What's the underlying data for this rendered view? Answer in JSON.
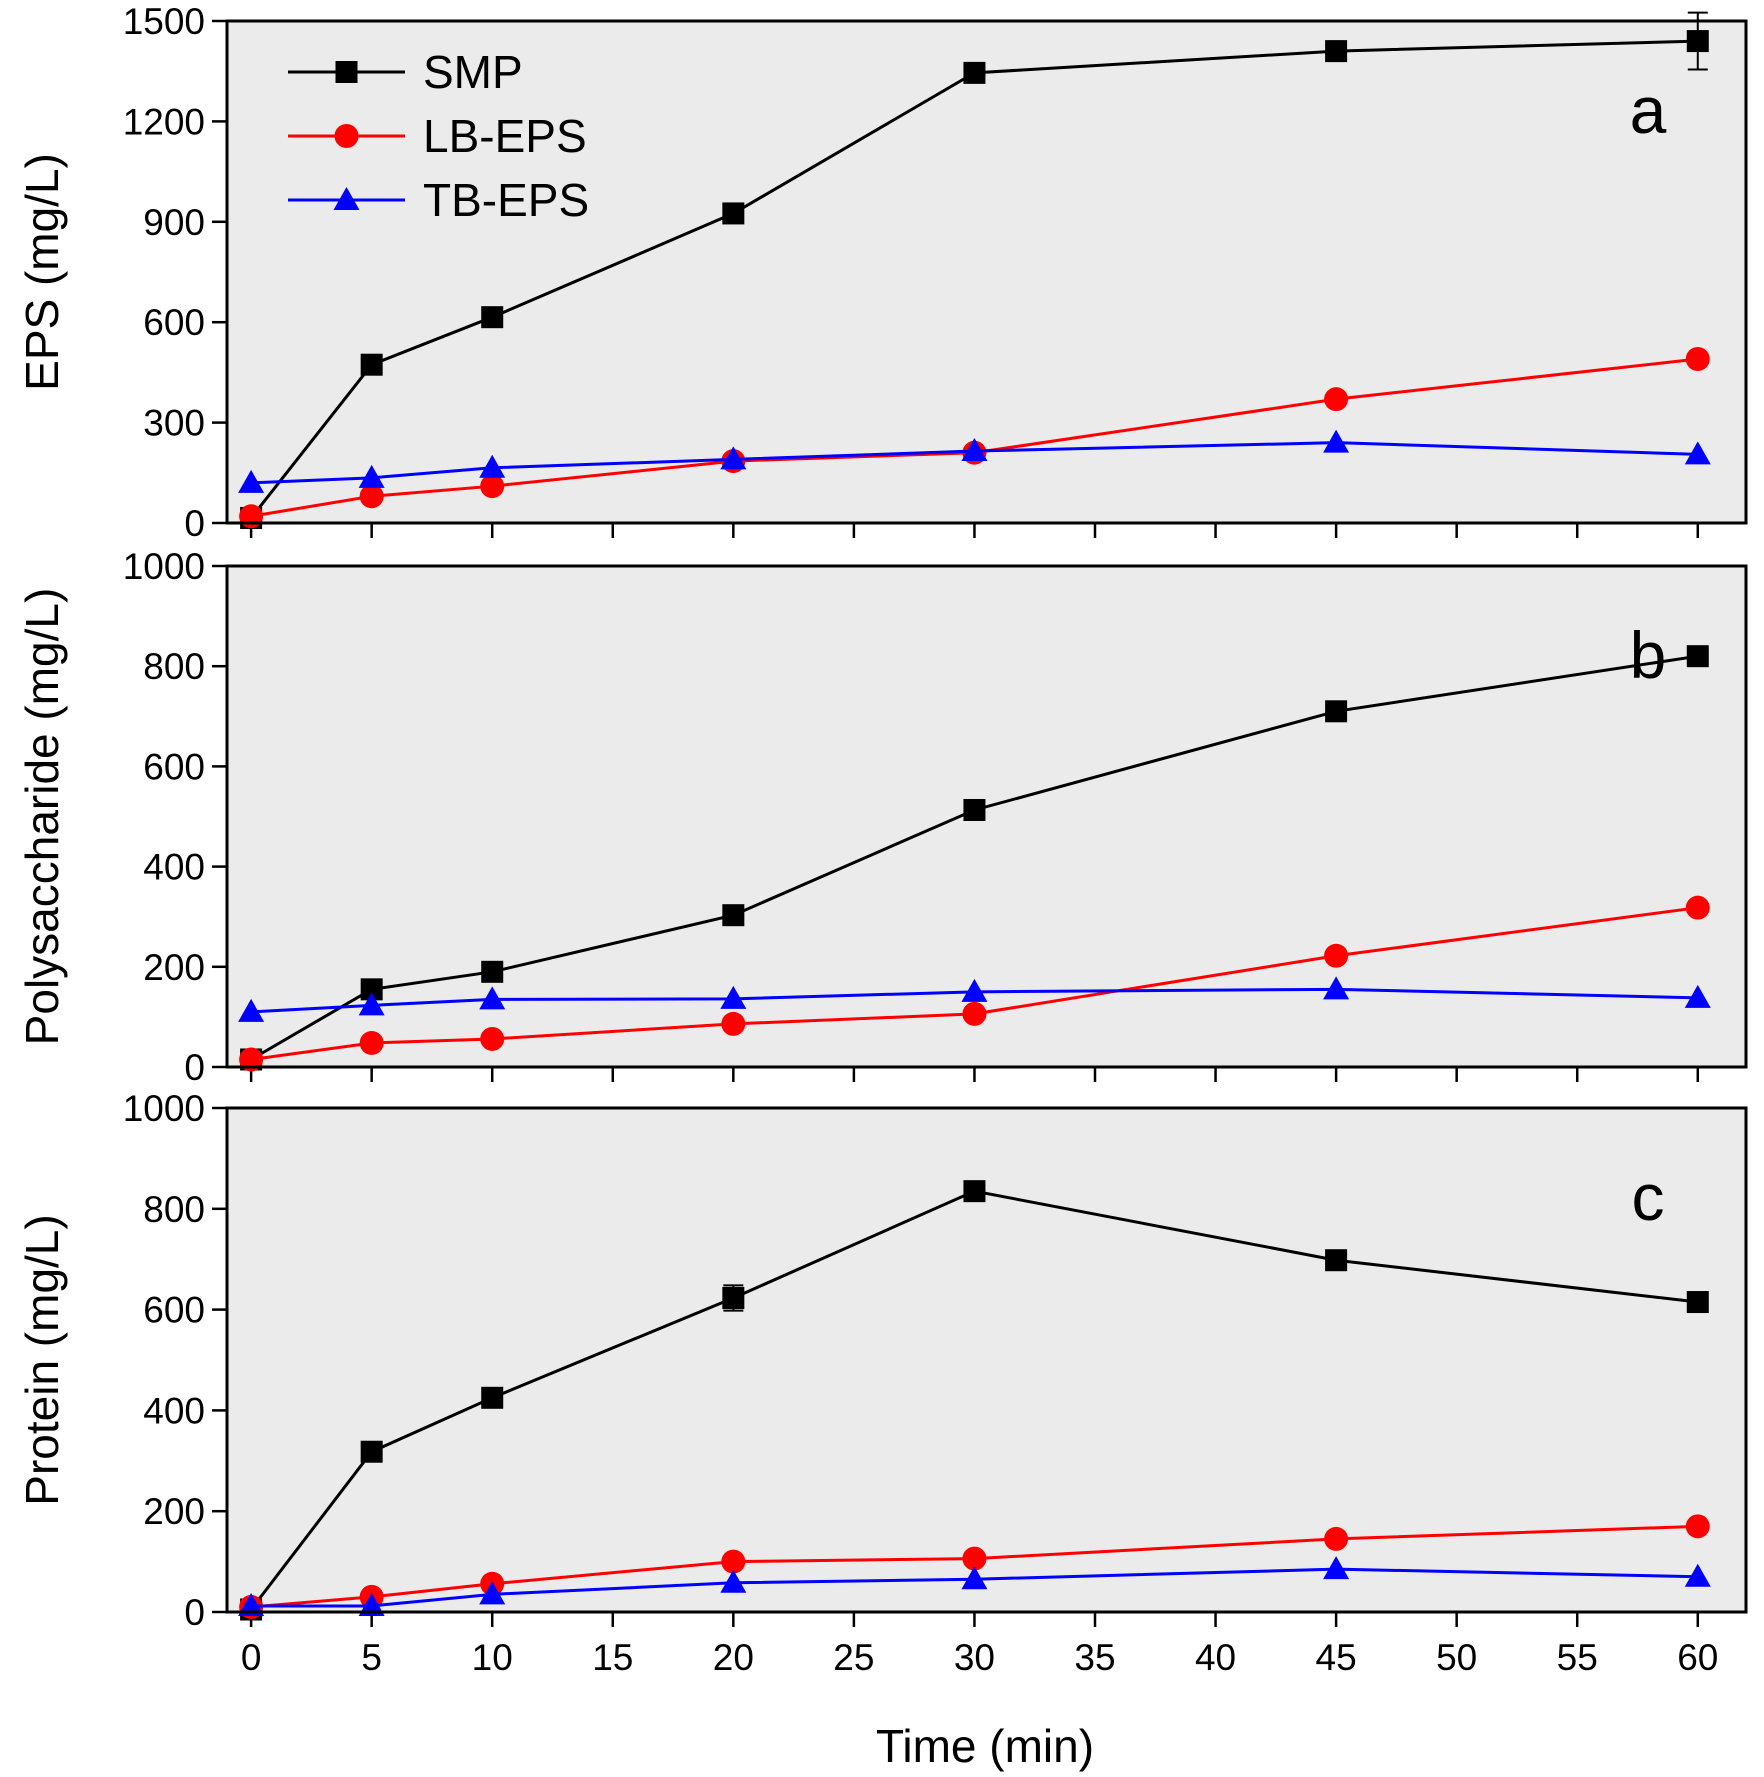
{
  "chart_data": {
    "type": "line",
    "x": [
      0,
      5,
      10,
      20,
      30,
      45,
      60
    ],
    "xlabel": "Time (min)",
    "xlim": [
      -1,
      62
    ],
    "xticks": [
      0,
      5,
      10,
      15,
      20,
      25,
      30,
      35,
      40,
      45,
      50,
      55,
      60
    ],
    "xtick_labels": [
      "0",
      "5",
      "10",
      "15",
      "20",
      "25",
      "30",
      "35",
      "40",
      "45",
      "50",
      "55",
      "60"
    ],
    "legend": {
      "location": "top-left",
      "entries": [
        {
          "name": "SMP",
          "color": "#000000",
          "marker": "square"
        },
        {
          "name": "LB-EPS",
          "color": "#ff0000",
          "marker": "circle"
        },
        {
          "name": "TB-EPS",
          "color": "#0000ff",
          "marker": "triangle"
        }
      ]
    },
    "panels": [
      {
        "id": "a",
        "letter": "a",
        "ylabel": "EPS (mg/L)",
        "ylim": [
          0,
          1500
        ],
        "yticks": [
          0,
          300,
          600,
          900,
          1200,
          1500
        ],
        "ytick_labels": [
          "0",
          "300",
          "600",
          "900",
          "1200",
          "1500"
        ],
        "series": [
          {
            "name": "SMP",
            "color": "#000000",
            "marker": "square",
            "values": [
              15,
              473,
              615,
              925,
              1345,
              1410,
              1440
            ],
            "errors": [
              0,
              0,
              0,
              0,
              0,
              0,
              85
            ]
          },
          {
            "name": "LB-EPS",
            "color": "#ff0000",
            "marker": "circle",
            "values": [
              20,
              80,
              110,
              185,
              210,
              370,
              490
            ],
            "errors": [
              0,
              0,
              0,
              0,
              0,
              0,
              0
            ]
          },
          {
            "name": "TB-EPS",
            "color": "#0000ff",
            "marker": "triangle",
            "values": [
              120,
              135,
              165,
              190,
              215,
              240,
              205
            ],
            "errors": [
              0,
              0,
              0,
              0,
              0,
              0,
              0
            ]
          }
        ]
      },
      {
        "id": "b",
        "letter": "b",
        "ylabel": "Polysaccharide (mg/L)",
        "ylim": [
          0,
          1000
        ],
        "yticks": [
          0,
          200,
          400,
          600,
          800,
          1000
        ],
        "ytick_labels": [
          "0",
          "200",
          "400",
          "600",
          "800",
          "1000"
        ],
        "series": [
          {
            "name": "SMP",
            "color": "#000000",
            "marker": "square",
            "values": [
              15,
              155,
              190,
              303,
              513,
              710,
              820
            ],
            "errors": [
              0,
              0,
              0,
              0,
              0,
              0,
              0
            ]
          },
          {
            "name": "LB-EPS",
            "color": "#ff0000",
            "marker": "circle",
            "values": [
              15,
              48,
              56,
              86,
              106,
              222,
              318
            ],
            "errors": [
              0,
              0,
              0,
              0,
              0,
              0,
              0
            ]
          },
          {
            "name": "TB-EPS",
            "color": "#0000ff",
            "marker": "triangle",
            "values": [
              110,
              123,
              135,
              136,
              150,
              155,
              138
            ],
            "errors": [
              0,
              0,
              0,
              0,
              0,
              0,
              0
            ]
          }
        ]
      },
      {
        "id": "c",
        "letter": "c",
        "ylabel": "Protein (mg/L)",
        "ylim": [
          0,
          1000
        ],
        "yticks": [
          0,
          200,
          400,
          600,
          800,
          1000
        ],
        "ytick_labels": [
          "0",
          "200",
          "400",
          "600",
          "800",
          "1000"
        ],
        "series": [
          {
            "name": "SMP",
            "color": "#000000",
            "marker": "square",
            "values": [
              5,
              318,
              425,
              623,
              835,
              698,
              615
            ],
            "errors": [
              0,
              0,
              0,
              25,
              0,
              0,
              0
            ]
          },
          {
            "name": "LB-EPS",
            "color": "#ff0000",
            "marker": "circle",
            "values": [
              10,
              30,
              56,
              100,
              106,
              145,
              170
            ],
            "errors": [
              0,
              0,
              0,
              0,
              0,
              0,
              0
            ]
          },
          {
            "name": "TB-EPS",
            "color": "#0000ff",
            "marker": "triangle",
            "values": [
              12,
              12,
              35,
              58,
              65,
              85,
              70
            ],
            "errors": [
              0,
              0,
              0,
              0,
              0,
              0,
              0
            ]
          }
        ]
      }
    ]
  }
}
